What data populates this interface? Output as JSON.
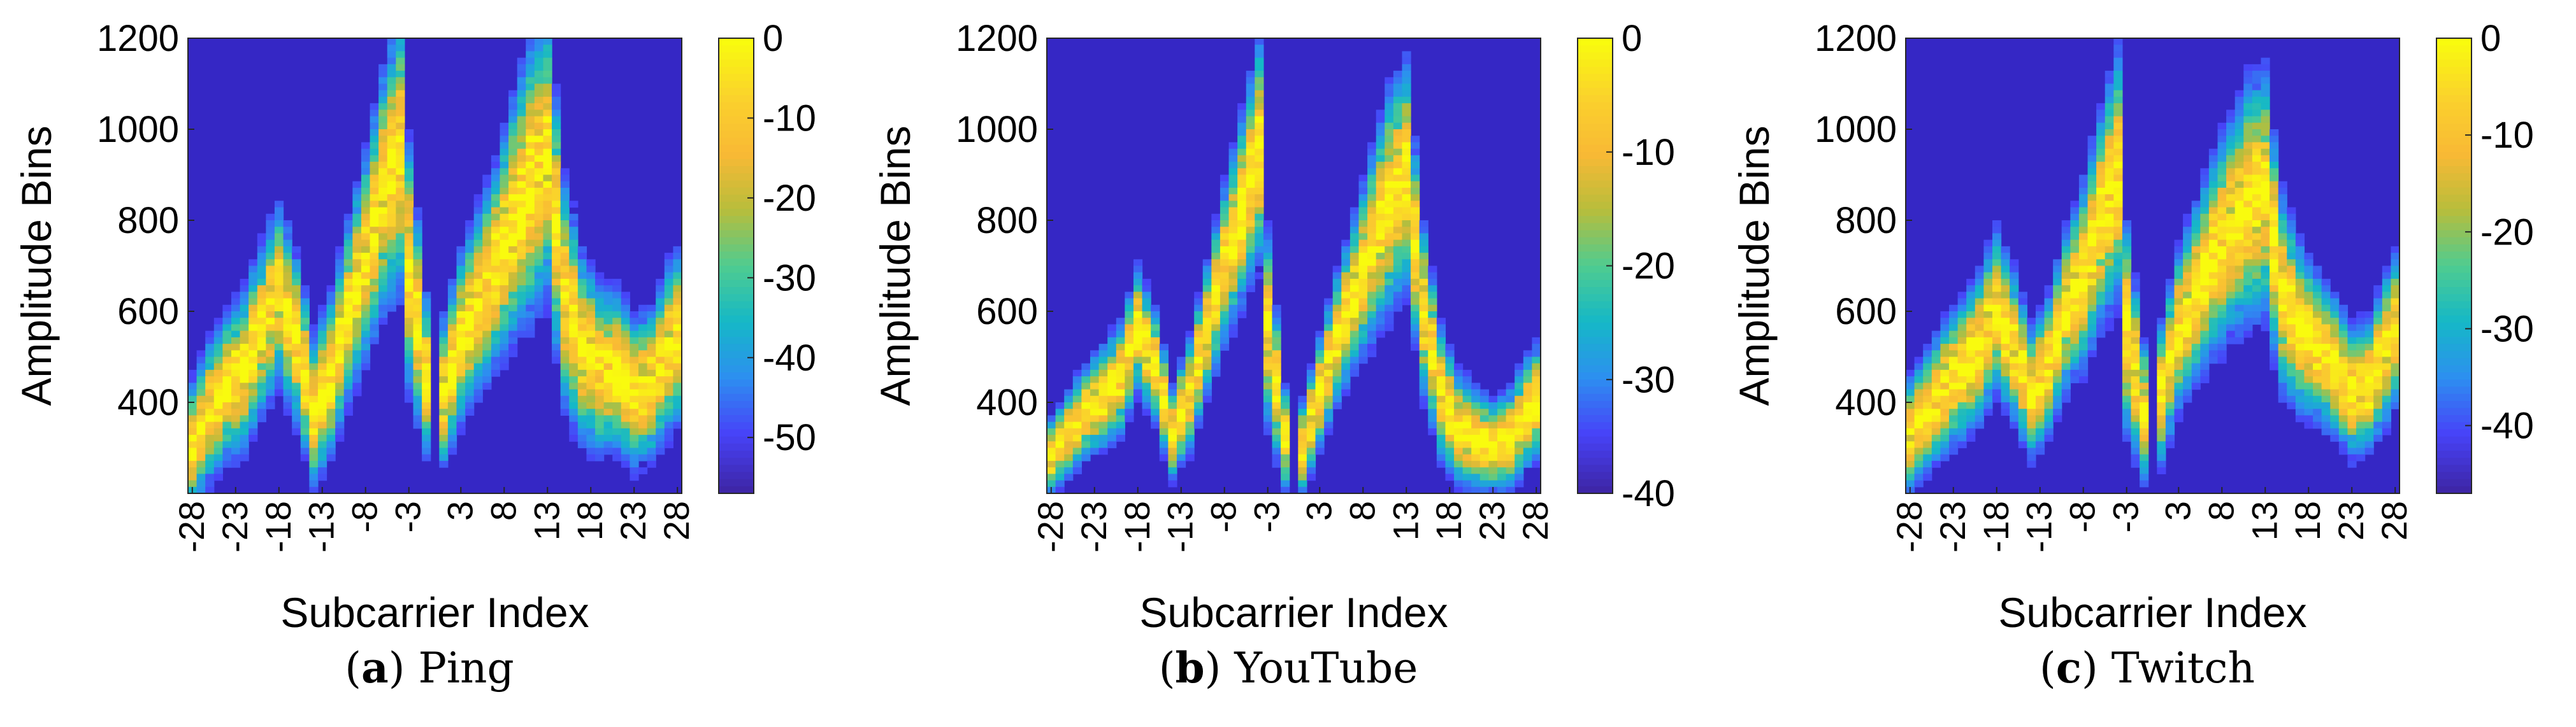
{
  "figure": {
    "colors": {
      "background": "#3527C5",
      "colormap": [
        "#3e26a8",
        "#4743f8",
        "#2d8ff0",
        "#15b8c7",
        "#4fcc90",
        "#b8bd3b",
        "#f9b935",
        "#fad22c",
        "#f9fb0e"
      ]
    }
  },
  "chart_data": [
    {
      "type": "heatmap",
      "panel_label": "a",
      "title": "Ping",
      "xlabel": "Subcarrier Index",
      "ylabel": "Amplitude Bins",
      "x_ticks": [
        "-28",
        "-23",
        "-18",
        "-13",
        "-8",
        "-3",
        "3",
        "8",
        "13",
        "18",
        "23",
        "28"
      ],
      "y_ticks": [
        "400",
        "600",
        "800",
        "1000",
        "1200"
      ],
      "ylim": [
        200,
        1200
      ],
      "colorbar": {
        "ticks": [
          "0",
          "-10",
          "-20",
          "-30",
          "-40",
          "-50"
        ],
        "range": [
          -57,
          0
        ]
      },
      "ridge": {
        "x": [
          -28,
          -26,
          -24,
          -22,
          -20,
          -18,
          -16,
          -14,
          -12,
          -10,
          -8,
          -6,
          -4,
          -3,
          -1,
          1,
          3,
          5,
          7,
          9,
          11,
          13,
          15,
          17,
          19,
          21,
          23,
          25,
          27,
          28
        ],
        "center": [
          300,
          380,
          430,
          470,
          560,
          640,
          540,
          380,
          460,
          600,
          720,
          860,
          950,
          700,
          460,
          420,
          540,
          620,
          700,
          800,
          880,
          940,
          640,
          520,
          470,
          470,
          420,
          440,
          520,
          540
        ],
        "width": [
          140,
          150,
          160,
          170,
          180,
          190,
          180,
          160,
          170,
          190,
          220,
          260,
          300,
          260,
          170,
          160,
          180,
          200,
          220,
          260,
          300,
          300,
          240,
          200,
          180,
          170,
          160,
          160,
          180,
          180
        ]
      }
    },
    {
      "type": "heatmap",
      "panel_label": "b",
      "title": "YouTube",
      "xlabel": "Subcarrier Index",
      "ylabel": "Amplitude Bins",
      "x_ticks": [
        "-28",
        "-23",
        "-18",
        "-13",
        "-8",
        "-3",
        "3",
        "8",
        "13",
        "18",
        "23",
        "28"
      ],
      "y_ticks": [
        "400",
        "600",
        "800",
        "1000",
        "1200"
      ],
      "ylim": [
        200,
        1200
      ],
      "colorbar": {
        "ticks": [
          "0",
          "-10",
          "-20",
          "-30",
          "-40"
        ],
        "range": [
          -40,
          0
        ]
      },
      "ridge": {
        "x": [
          -28,
          -26,
          -24,
          -22,
          -20,
          -18,
          -16,
          -14,
          -12,
          -10,
          -8,
          -6,
          -4,
          -3,
          -1,
          1,
          3,
          5,
          7,
          9,
          11,
          13,
          15,
          17,
          19,
          21,
          23,
          25,
          27,
          28
        ],
        "center": [
          280,
          330,
          380,
          410,
          450,
          560,
          480,
          330,
          420,
          560,
          700,
          820,
          950,
          560,
          320,
          300,
          420,
          540,
          640,
          740,
          840,
          900,
          600,
          420,
          340,
          320,
          300,
          320,
          380,
          400
        ],
        "width": [
          80,
          90,
          100,
          110,
          120,
          130,
          120,
          100,
          120,
          140,
          170,
          200,
          240,
          200,
          110,
          100,
          120,
          140,
          160,
          200,
          240,
          240,
          180,
          140,
          120,
          110,
          100,
          110,
          120,
          120
        ]
      }
    },
    {
      "type": "heatmap",
      "panel_label": "c",
      "title": "Twitch",
      "xlabel": "Subcarrier Index",
      "ylabel": "Amplitude Bins",
      "x_ticks": [
        "-28",
        "-23",
        "-18",
        "-13",
        "-8",
        "-3",
        "3",
        "8",
        "13",
        "18",
        "23",
        "28"
      ],
      "y_ticks": [
        "400",
        "600",
        "800",
        "1000",
        "1200"
      ],
      "ylim": [
        200,
        1200
      ],
      "colorbar": {
        "ticks": [
          "0",
          "-10",
          "-20",
          "-30",
          "-40"
        ],
        "range": [
          -47,
          0
        ]
      },
      "ridge": {
        "x": [
          -28,
          -26,
          -24,
          -22,
          -20,
          -18,
          -16,
          -14,
          -12,
          -10,
          -8,
          -6,
          -4,
          -3,
          -1,
          1,
          3,
          5,
          7,
          9,
          11,
          13,
          15,
          17,
          19,
          21,
          23,
          25,
          27,
          28
        ],
        "center": [
          330,
          380,
          430,
          470,
          520,
          600,
          520,
          420,
          480,
          600,
          680,
          800,
          900,
          560,
          380,
          420,
          560,
          640,
          720,
          780,
          840,
          860,
          640,
          560,
          520,
          480,
          420,
          440,
          520,
          560
        ],
        "width": [
          120,
          130,
          140,
          150,
          160,
          170,
          160,
          140,
          150,
          170,
          200,
          230,
          260,
          220,
          150,
          150,
          170,
          190,
          210,
          230,
          260,
          260,
          210,
          180,
          160,
          150,
          140,
          140,
          160,
          160
        ]
      }
    }
  ]
}
